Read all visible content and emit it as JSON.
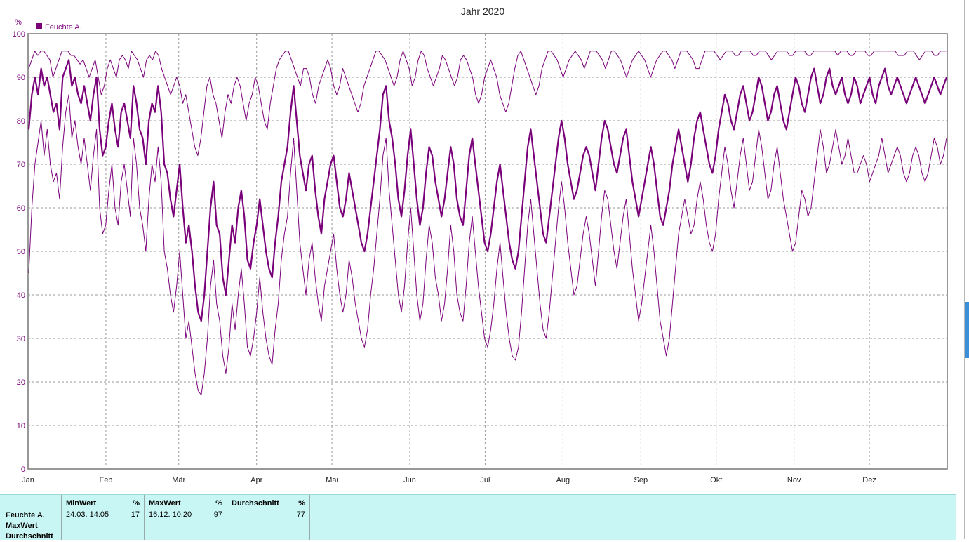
{
  "chart_data": {
    "type": "line",
    "title": "Jahr 2020",
    "ylabel": "%",
    "ylim": [
      0,
      100
    ],
    "yticks": [
      0,
      10,
      20,
      30,
      40,
      50,
      60,
      70,
      80,
      90,
      100
    ],
    "months": [
      "Jan",
      "Feb",
      "Mär",
      "Apr",
      "Mai",
      "Jun",
      "Jul",
      "Aug",
      "Sep",
      "Okt",
      "Nov",
      "Dez"
    ],
    "legend": "Feuchte A.",
    "series_color": "#7a007a",
    "grid": true,
    "series": [
      {
        "role": "mean",
        "values": [
          78,
          86,
          90,
          86,
          92,
          88,
          90,
          86,
          82,
          84,
          78,
          90,
          92,
          94,
          88,
          90,
          86,
          84,
          88,
          84,
          80,
          86,
          90,
          78,
          72,
          74,
          80,
          84,
          78,
          74,
          82,
          84,
          80,
          76,
          88,
          84,
          78,
          76,
          70,
          80,
          84,
          82,
          88,
          82,
          70,
          68,
          62,
          58,
          64,
          70,
          60,
          52,
          56,
          50,
          42,
          36,
          34,
          40,
          50,
          60,
          66,
          56,
          54,
          44,
          40,
          48,
          56,
          52,
          60,
          64,
          58,
          48,
          46,
          52,
          56,
          62,
          56,
          50,
          46,
          44,
          52,
          58,
          66,
          70,
          74,
          82,
          88,
          80,
          72,
          68,
          64,
          70,
          72,
          64,
          58,
          54,
          62,
          66,
          70,
          72,
          66,
          60,
          58,
          62,
          68,
          64,
          60,
          56,
          52,
          50,
          54,
          60,
          66,
          72,
          78,
          86,
          88,
          80,
          76,
          70,
          62,
          58,
          64,
          72,
          78,
          70,
          62,
          56,
          60,
          68,
          74,
          72,
          66,
          62,
          58,
          62,
          68,
          74,
          70,
          62,
          58,
          56,
          64,
          72,
          76,
          70,
          64,
          58,
          52,
          50,
          54,
          60,
          66,
          70,
          64,
          58,
          52,
          48,
          46,
          50,
          58,
          66,
          74,
          78,
          72,
          66,
          60,
          54,
          52,
          58,
          64,
          70,
          76,
          80,
          76,
          70,
          66,
          62,
          64,
          68,
          72,
          74,
          72,
          68,
          64,
          70,
          76,
          80,
          78,
          74,
          70,
          68,
          72,
          76,
          78,
          72,
          66,
          62,
          58,
          62,
          66,
          70,
          74,
          70,
          64,
          58,
          56,
          60,
          64,
          70,
          74,
          78,
          74,
          70,
          66,
          70,
          76,
          80,
          82,
          78,
          74,
          70,
          68,
          72,
          78,
          82,
          86,
          84,
          80,
          78,
          82,
          86,
          88,
          84,
          80,
          82,
          86,
          90,
          88,
          84,
          80,
          82,
          86,
          88,
          84,
          80,
          78,
          82,
          86,
          90,
          88,
          84,
          82,
          86,
          90,
          92,
          88,
          84,
          86,
          90,
          92,
          88,
          86,
          88,
          90,
          86,
          84,
          86,
          90,
          88,
          84,
          86,
          88,
          90,
          86,
          84,
          88,
          90,
          92,
          88,
          86,
          88,
          90,
          88,
          86,
          84,
          86,
          88,
          90,
          88,
          86,
          84,
          86,
          88,
          90,
          88,
          86,
          88,
          90
        ]
      },
      {
        "role": "max",
        "values": [
          92,
          94,
          96,
          95,
          96,
          96,
          95,
          94,
          90,
          92,
          94,
          96,
          96,
          96,
          95,
          95,
          94,
          93,
          94,
          92,
          90,
          92,
          94,
          90,
          86,
          88,
          92,
          94,
          92,
          90,
          94,
          95,
          94,
          92,
          96,
          95,
          94,
          92,
          90,
          94,
          95,
          94,
          96,
          95,
          92,
          90,
          88,
          86,
          88,
          90,
          88,
          84,
          86,
          82,
          78,
          74,
          72,
          76,
          82,
          88,
          90,
          86,
          84,
          80,
          76,
          82,
          86,
          84,
          88,
          90,
          88,
          84,
          80,
          84,
          86,
          90,
          88,
          84,
          80,
          78,
          84,
          88,
          92,
          94,
          95,
          96,
          96,
          94,
          92,
          90,
          88,
          92,
          92,
          90,
          86,
          84,
          88,
          90,
          92,
          94,
          92,
          88,
          86,
          88,
          92,
          90,
          88,
          86,
          84,
          82,
          84,
          88,
          90,
          92,
          94,
          96,
          96,
          95,
          94,
          92,
          90,
          88,
          90,
          94,
          96,
          94,
          92,
          88,
          90,
          94,
          96,
          95,
          92,
          90,
          88,
          90,
          92,
          95,
          94,
          92,
          90,
          88,
          90,
          94,
          95,
          94,
          92,
          90,
          86,
          84,
          86,
          90,
          92,
          94,
          92,
          90,
          86,
          84,
          82,
          84,
          88,
          92,
          95,
          96,
          94,
          92,
          90,
          88,
          86,
          88,
          92,
          94,
          96,
          96,
          95,
          94,
          92,
          90,
          92,
          94,
          95,
          96,
          95,
          94,
          92,
          94,
          96,
          96,
          96,
          95,
          94,
          92,
          94,
          96,
          96,
          95,
          94,
          92,
          90,
          92,
          94,
          95,
          96,
          95,
          94,
          92,
          90,
          92,
          94,
          95,
          96,
          96,
          95,
          94,
          92,
          94,
          96,
          96,
          96,
          95,
          94,
          92,
          92,
          94,
          96,
          96,
          96,
          96,
          95,
          94,
          95,
          96,
          96,
          96,
          95,
          95,
          96,
          96,
          96,
          96,
          95,
          95,
          96,
          96,
          96,
          95,
          94,
          95,
          96,
          96,
          96,
          96,
          95,
          95,
          96,
          96,
          96,
          96,
          95,
          95,
          96,
          96,
          96,
          96,
          96,
          96,
          96,
          96,
          95,
          96,
          96,
          96,
          95,
          95,
          96,
          96,
          96,
          96,
          95,
          95,
          96,
          96,
          96,
          96,
          96,
          96,
          96,
          96,
          95,
          95,
          95,
          96,
          96,
          96,
          95,
          94,
          95,
          96,
          96,
          96,
          95,
          95,
          96,
          96,
          96
        ]
      },
      {
        "role": "min",
        "values": [
          45,
          60,
          70,
          75,
          80,
          72,
          78,
          70,
          66,
          68,
          62,
          74,
          82,
          86,
          76,
          80,
          74,
          70,
          76,
          70,
          64,
          72,
          78,
          60,
          54,
          56,
          64,
          70,
          60,
          56,
          66,
          70,
          64,
          58,
          76,
          70,
          60,
          56,
          50,
          62,
          70,
          66,
          74,
          66,
          50,
          46,
          40,
          36,
          42,
          50,
          40,
          30,
          34,
          28,
          22,
          18,
          17,
          22,
          30,
          42,
          48,
          38,
          34,
          26,
          22,
          28,
          38,
          32,
          40,
          46,
          38,
          28,
          26,
          30,
          36,
          44,
          36,
          30,
          26,
          24,
          32,
          38,
          48,
          54,
          58,
          68,
          76,
          64,
          52,
          46,
          40,
          48,
          52,
          44,
          38,
          34,
          42,
          46,
          50,
          54,
          46,
          40,
          36,
          40,
          48,
          44,
          38,
          34,
          30,
          28,
          32,
          40,
          46,
          54,
          62,
          72,
          76,
          64,
          56,
          48,
          40,
          36,
          42,
          52,
          60,
          50,
          40,
          34,
          38,
          48,
          56,
          52,
          44,
          40,
          34,
          38,
          46,
          56,
          50,
          40,
          36,
          34,
          42,
          52,
          58,
          50,
          42,
          36,
          30,
          28,
          32,
          38,
          46,
          52,
          44,
          36,
          30,
          26,
          25,
          28,
          36,
          46,
          56,
          62,
          54,
          46,
          38,
          32,
          30,
          36,
          44,
          52,
          60,
          66,
          60,
          52,
          46,
          40,
          42,
          48,
          54,
          58,
          54,
          48,
          42,
          50,
          58,
          64,
          62,
          56,
          50,
          46,
          52,
          58,
          62,
          54,
          46,
          40,
          34,
          38,
          44,
          50,
          56,
          50,
          42,
          34,
          30,
          26,
          30,
          38,
          46,
          54,
          58,
          62,
          58,
          54,
          56,
          62,
          66,
          62,
          56,
          52,
          50,
          54,
          62,
          68,
          74,
          70,
          64,
          60,
          66,
          72,
          76,
          70,
          64,
          66,
          72,
          78,
          74,
          68,
          62,
          64,
          70,
          74,
          68,
          62,
          58,
          54,
          50,
          52,
          58,
          64,
          62,
          58,
          60,
          66,
          72,
          78,
          74,
          68,
          70,
          74,
          78,
          74,
          70,
          72,
          76,
          72,
          68,
          68,
          70,
          72,
          70,
          66,
          68,
          70,
          72,
          76,
          72,
          68,
          70,
          72,
          74,
          72,
          68,
          66,
          68,
          72,
          74,
          72,
          68,
          66,
          68,
          72,
          76,
          74,
          70,
          72,
          76
        ]
      }
    ]
  },
  "stats": {
    "row_labels": [
      "Feuchte A.",
      "MaxWert",
      "Durchschnitt"
    ],
    "columns": [
      {
        "header": "MinWert",
        "unit": "%",
        "date": "24.03.  14:05",
        "value": "17"
      },
      {
        "header": "MaxWert",
        "unit": "%",
        "date": "16.12.  10:20",
        "value": "97"
      },
      {
        "header": "Durchschnitt",
        "unit": "%",
        "date": "",
        "value": "77"
      }
    ]
  }
}
